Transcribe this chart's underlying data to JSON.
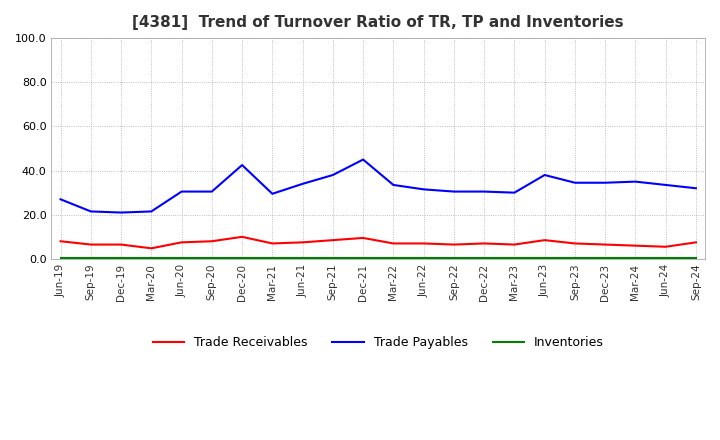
{
  "title": "[4381]  Trend of Turnover Ratio of TR, TP and Inventories",
  "x_labels": [
    "Jun-19",
    "Sep-19",
    "Dec-19",
    "Mar-20",
    "Jun-20",
    "Sep-20",
    "Dec-20",
    "Mar-21",
    "Jun-21",
    "Sep-21",
    "Dec-21",
    "Mar-22",
    "Jun-22",
    "Sep-22",
    "Dec-22",
    "Mar-23",
    "Jun-23",
    "Sep-23",
    "Dec-23",
    "Mar-24",
    "Jun-24",
    "Sep-24"
  ],
  "trade_receivables": [
    8.0,
    6.5,
    6.5,
    4.8,
    7.5,
    8.0,
    10.0,
    7.0,
    7.5,
    8.5,
    9.5,
    7.0,
    7.0,
    6.5,
    7.0,
    6.5,
    8.5,
    7.0,
    6.5,
    6.0,
    5.5,
    7.5
  ],
  "trade_payables": [
    27.0,
    21.5,
    21.0,
    21.5,
    30.5,
    30.5,
    42.5,
    29.5,
    34.0,
    38.0,
    45.0,
    33.5,
    31.5,
    30.5,
    30.5,
    30.0,
    38.0,
    34.5,
    34.5,
    35.0,
    33.5,
    32.0
  ],
  "inventories": [
    0.3,
    0.3,
    0.3,
    0.3,
    0.3,
    0.3,
    0.3,
    0.3,
    0.3,
    0.3,
    0.3,
    0.3,
    0.3,
    0.3,
    0.3,
    0.3,
    0.3,
    0.3,
    0.3,
    0.3,
    0.3,
    0.3
  ],
  "tr_color": "#ff0000",
  "tp_color": "#0000ff",
  "inv_color": "#008000",
  "ylim": [
    0,
    100
  ],
  "yticks": [
    0.0,
    20.0,
    40.0,
    60.0,
    80.0,
    100.0
  ],
  "legend_labels": [
    "Trade Receivables",
    "Trade Payables",
    "Inventories"
  ],
  "line_width": 1.5
}
